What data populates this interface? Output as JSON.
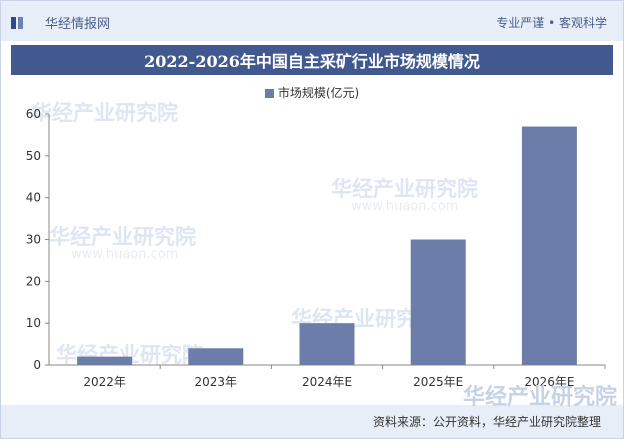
{
  "header": {
    "brand": "华经情报网",
    "slogan": "专业严谨 • 客观科学"
  },
  "title": "2022-2026年中国自主采矿行业市场规模情况",
  "watermark": {
    "text": "华经产业研究院",
    "url": "www.huaon.com"
  },
  "footer": {
    "source": "资料来源：公开资料，华经产业研究院整理"
  },
  "colors": {
    "bar": "#6b7da8",
    "title_bg": "#42598f",
    "band": "#e8eef8"
  },
  "chart_data": {
    "type": "bar",
    "categories": [
      "2022年",
      "2023年",
      "2024年E",
      "2025年E",
      "2026年E"
    ],
    "series": [
      {
        "name": "市场规模(亿元)",
        "values": [
          2,
          4,
          10,
          30,
          57
        ]
      }
    ],
    "yticks": [
      "0",
      "10",
      "20",
      "30",
      "40",
      "50",
      "60"
    ],
    "ylim": [
      0,
      60
    ],
    "grid": false,
    "legend": "top-center"
  }
}
